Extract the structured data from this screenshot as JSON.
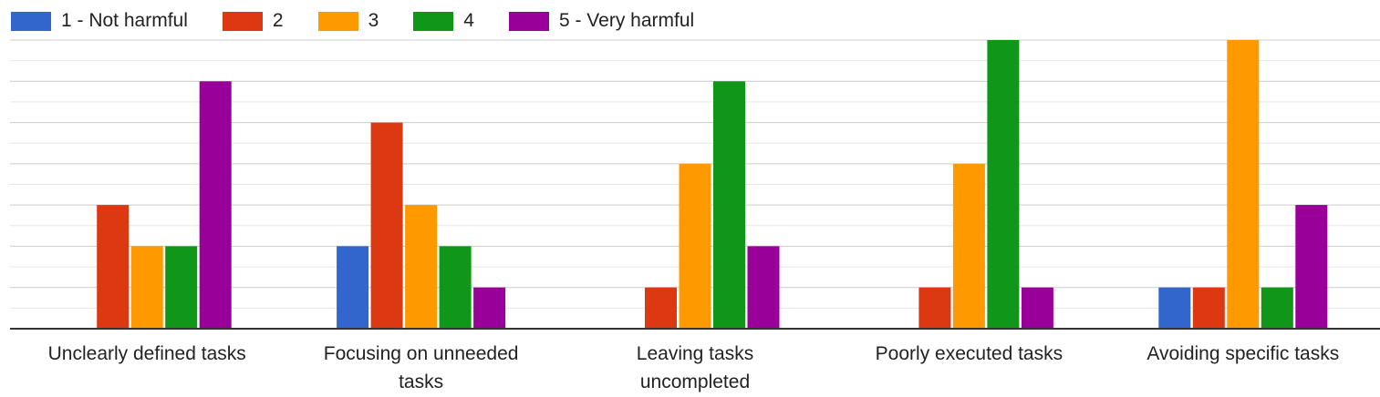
{
  "chart_data": {
    "type": "bar",
    "title": "",
    "xlabel": "",
    "ylabel": "",
    "categories": [
      [
        "Unclearly defined tasks"
      ],
      [
        "Focusing on unneeded",
        "tasks"
      ],
      [
        "Leaving tasks",
        "uncompleted"
      ],
      [
        "Poorly executed tasks"
      ],
      [
        "Avoiding specific tasks"
      ]
    ],
    "series": [
      {
        "name": "1 - Not harmful",
        "color": "#3366cc",
        "values": [
          0,
          2,
          0,
          0,
          1
        ]
      },
      {
        "name": "2",
        "color": "#dc3912",
        "values": [
          3,
          5,
          1,
          1,
          1
        ]
      },
      {
        "name": "3",
        "color": "#ff9900",
        "values": [
          2,
          3,
          4,
          4,
          7
        ]
      },
      {
        "name": "4",
        "color": "#109618",
        "values": [
          2,
          2,
          6,
          7,
          1
        ]
      },
      {
        "name": "5 - Very harmful",
        "color": "#990099",
        "values": [
          6,
          1,
          2,
          1,
          3
        ]
      }
    ],
    "ylim": [
      0,
      7
    ],
    "grid": true,
    "legend_position": "top-left"
  }
}
